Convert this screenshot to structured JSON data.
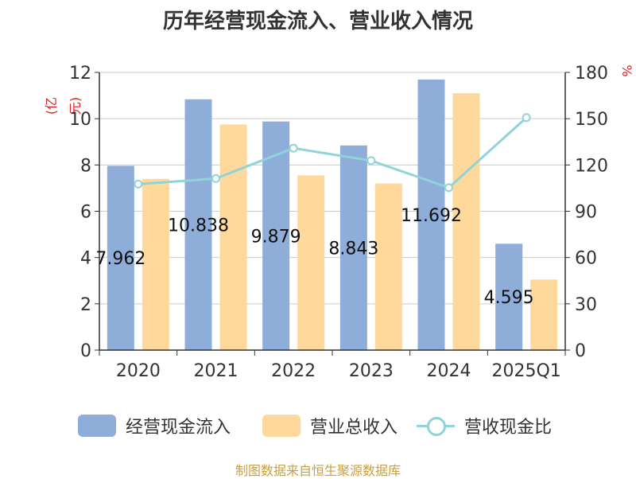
{
  "chart_data": {
    "type": "bar",
    "title": "历年经营现金流入、营业收入情况",
    "categories": [
      "2020",
      "2021",
      "2022",
      "2023",
      "2024",
      "2025Q1"
    ],
    "y_left": {
      "unit": "(亿元)",
      "ylim": [
        0,
        12
      ],
      "ticks": [
        "0",
        "2",
        "4",
        "6",
        "8",
        "10",
        "12"
      ]
    },
    "y_right": {
      "unit": "%",
      "ylim": [
        0,
        180
      ],
      "ticks": [
        "0",
        "30",
        "60",
        "90",
        "120",
        "150",
        "180"
      ]
    },
    "grid": true,
    "legend_position": "bottom",
    "series": [
      {
        "name": "经营现金流入",
        "type": "bar",
        "axis": "left",
        "color": "#8eadd9",
        "values": [
          7.962,
          10.838,
          9.879,
          8.843,
          11.692,
          4.595
        ],
        "labels": [
          "7.962",
          "10.838",
          "9.879",
          "8.843",
          "11.692",
          "4.595"
        ]
      },
      {
        "name": "营业总收入",
        "type": "bar",
        "axis": "left",
        "color": "#fed99b",
        "values": [
          7.4,
          9.75,
          7.55,
          7.2,
          11.1,
          3.05
        ]
      },
      {
        "name": "营收现金比",
        "type": "line",
        "axis": "right",
        "color": "#8fd4d9",
        "values": [
          107.6,
          111.2,
          130.9,
          122.8,
          105.3,
          150.7
        ]
      }
    ]
  },
  "source": "制图数据来自恒生聚源数据库"
}
